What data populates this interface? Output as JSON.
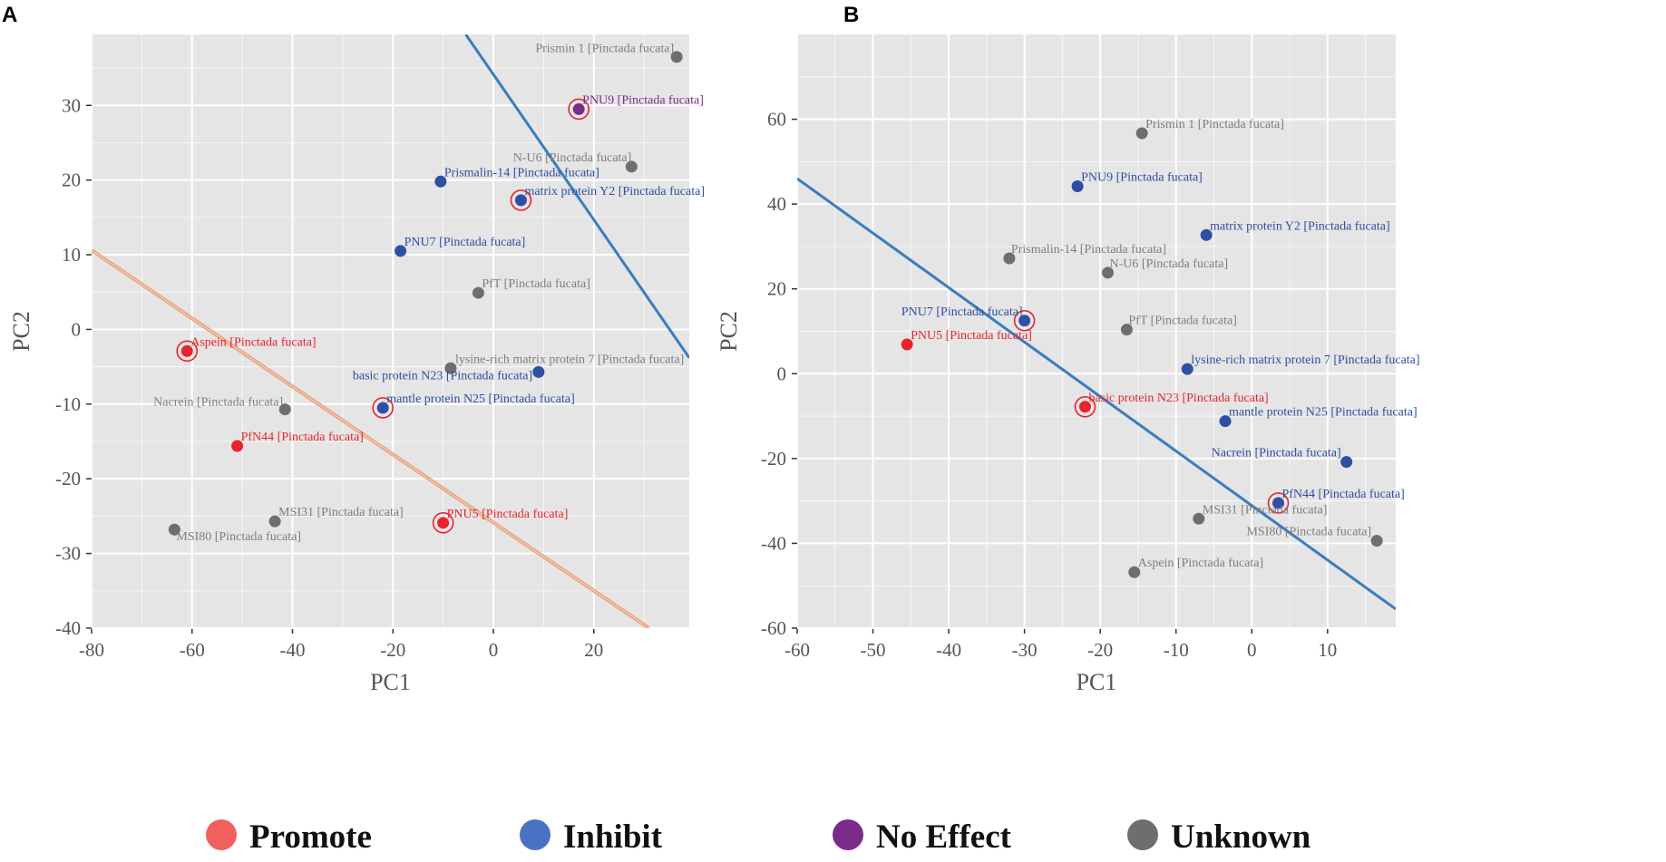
{
  "colors": {
    "promote": "#e8242b",
    "inhibit": "#2e4fa3",
    "no_effect": "#7b2c8a",
    "unknown": "#6e6e6e",
    "unknown_label": "#7f7f7f",
    "panel_bg": "#e5e5e5",
    "grid": "#ffffff",
    "line_blue": "#3a7dbf",
    "line_orange": "#e6a07e",
    "legend_promote": "#f0605d",
    "legend_inhibit": "#4a72c2",
    "legend_no_effect": "#7b2c8a",
    "legend_unknown": "#6e6e6e"
  },
  "legend": [
    {
      "key": "promote",
      "label": "Promote"
    },
    {
      "key": "inhibit",
      "label": "Inhibit"
    },
    {
      "key": "no_effect",
      "label": "No Effect"
    },
    {
      "key": "unknown",
      "label": "Unknown"
    }
  ],
  "chart_data": [
    {
      "panel": "A",
      "type": "scatter",
      "xlabel": "PC1",
      "ylabel": "PC2",
      "xlim": [
        -80,
        39
      ],
      "ylim": [
        -40,
        39.5
      ],
      "xticks": [
        -80,
        -60,
        -40,
        -20,
        0,
        20
      ],
      "yticks": [
        -40,
        -30,
        -20,
        -10,
        0,
        10,
        20,
        30
      ],
      "lines": [
        {
          "color": "line_blue",
          "points": [
            [
              -5.5,
              39.5
            ],
            [
              39,
              -3.8
            ]
          ]
        },
        {
          "color": "line_orange",
          "points": [
            [
              -80,
              10.6
            ],
            [
              31,
              -40
            ]
          ]
        }
      ],
      "points": [
        {
          "label": "Prismin 1 [Pinctada fucata]",
          "x": 36.5,
          "y": 36.5,
          "cat": "unknown",
          "circled": false
        },
        {
          "label": "PNU9 [Pinctada fucata]",
          "x": 17,
          "y": 29.5,
          "cat": "no_effect",
          "circled": true
        },
        {
          "label": "N-U6 [Pinctada fucata]",
          "x": 27.5,
          "y": 21.8,
          "cat": "unknown",
          "circled": false
        },
        {
          "label": "Prismalin-14 [Pinctada fucata]",
          "x": -10.5,
          "y": 19.8,
          "cat": "inhibit",
          "circled": false
        },
        {
          "label": "matrix protein Y2 [Pinctada fucata]",
          "x": 5.5,
          "y": 17.3,
          "cat": "inhibit",
          "circled": true
        },
        {
          "label": "PNU7 [Pinctada fucata]",
          "x": -18.5,
          "y": 10.5,
          "cat": "inhibit",
          "circled": false
        },
        {
          "label": "PfT [Pinctada fucata]",
          "x": -3,
          "y": 4.9,
          "cat": "unknown",
          "circled": false
        },
        {
          "label": "Aspein [Pinctada fucata]",
          "x": -61,
          "y": -2.9,
          "cat": "promote",
          "circled": true
        },
        {
          "label": "lysine-rich matrix protein 7 [Pinctada fucata]",
          "x": -8.5,
          "y": -5.2,
          "cat": "unknown",
          "circled": false
        },
        {
          "label": "basic protein N23 [Pinctada fucata]",
          "x": 9,
          "y": -5.7,
          "cat": "inhibit",
          "circled": false
        },
        {
          "label": "mantle protein N25 [Pinctada fucata]",
          "x": -22,
          "y": -10.5,
          "cat": "inhibit",
          "circled": true
        },
        {
          "label": "Nacrein [Pinctada fucata]",
          "x": -41.5,
          "y": -10.7,
          "cat": "unknown",
          "circled": false
        },
        {
          "label": "PfN44 [Pinctada fucata]",
          "x": -51,
          "y": -15.6,
          "cat": "promote",
          "circled": false
        },
        {
          "label": "MSI31 [Pinctada fucata]",
          "x": -43.5,
          "y": -25.7,
          "cat": "unknown",
          "circled": false
        },
        {
          "label": "MSI80 [Pinctada fucata]",
          "x": -63.5,
          "y": -26.8,
          "cat": "unknown",
          "circled": false
        },
        {
          "label": "PNU5 [Pinctada fucata]",
          "x": -10,
          "y": -25.9,
          "cat": "promote",
          "circled": true
        }
      ]
    },
    {
      "panel": "B",
      "type": "scatter",
      "xlabel": "PC1",
      "ylabel": "PC2",
      "xlim": [
        -60,
        19
      ],
      "ylim": [
        -60,
        80
      ],
      "xticks": [
        -60,
        -50,
        -40,
        -30,
        -20,
        -10,
        0,
        10
      ],
      "yticks": [
        -60,
        -40,
        -20,
        0,
        20,
        40,
        60
      ],
      "lines": [
        {
          "color": "line_blue",
          "points": [
            [
              -60,
              46
            ],
            [
              19,
              -55.5
            ]
          ]
        }
      ],
      "points": [
        {
          "label": "Prismin 1 [Pinctada fucata]",
          "x": -14.5,
          "y": 56.7,
          "cat": "unknown",
          "circled": false
        },
        {
          "label": "PNU9 [Pinctada fucata]",
          "x": -23,
          "y": 44.2,
          "cat": "inhibit",
          "circled": false
        },
        {
          "label": "matrix protein Y2 [Pinctada fucata]",
          "x": -6,
          "y": 32.7,
          "cat": "inhibit",
          "circled": false
        },
        {
          "label": "Prismalin-14 [Pinctada fucata]",
          "x": -32,
          "y": 27.2,
          "cat": "unknown",
          "circled": false
        },
        {
          "label": "N-U6 [Pinctada fucata]",
          "x": -19,
          "y": 23.8,
          "cat": "unknown",
          "circled": false
        },
        {
          "label": "PNU7 [Pinctada fucata]",
          "x": -30,
          "y": 12.5,
          "cat": "inhibit",
          "circled": true
        },
        {
          "label": "PfT [Pinctada fucata]",
          "x": -16.5,
          "y": 10.4,
          "cat": "unknown",
          "circled": false
        },
        {
          "label": "PNU5 [Pinctada fucata]",
          "x": -45.5,
          "y": 6.9,
          "cat": "promote",
          "circled": false
        },
        {
          "label": "lysine-rich matrix protein 7 [Pinctada fucata]",
          "x": -8.5,
          "y": 1.1,
          "cat": "inhibit",
          "circled": false
        },
        {
          "label": "basic protein N23 [Pinctada fucata]",
          "x": -22,
          "y": -7.8,
          "cat": "promote",
          "circled": true
        },
        {
          "label": "mantle protein N25 [Pinctada fucata]",
          "x": -3.5,
          "y": -11.2,
          "cat": "inhibit",
          "circled": false
        },
        {
          "label": "Nacrein [Pinctada fucata]",
          "x": 12.5,
          "y": -20.8,
          "cat": "inhibit",
          "circled": false
        },
        {
          "label": "PfN44 [Pinctada fucata]",
          "x": 3.5,
          "y": -30.5,
          "cat": "inhibit",
          "circled": true
        },
        {
          "label": "MSI31 [Pinctada fucata]",
          "x": -7,
          "y": -34.2,
          "cat": "unknown",
          "circled": false
        },
        {
          "label": "MSI80 [Pinctada fucata]",
          "x": 16.5,
          "y": -39.4,
          "cat": "unknown",
          "circled": false
        },
        {
          "label": "Aspein [Pinctada fucata]",
          "x": -15.5,
          "y": -46.8,
          "cat": "unknown",
          "circled": false
        }
      ]
    }
  ]
}
